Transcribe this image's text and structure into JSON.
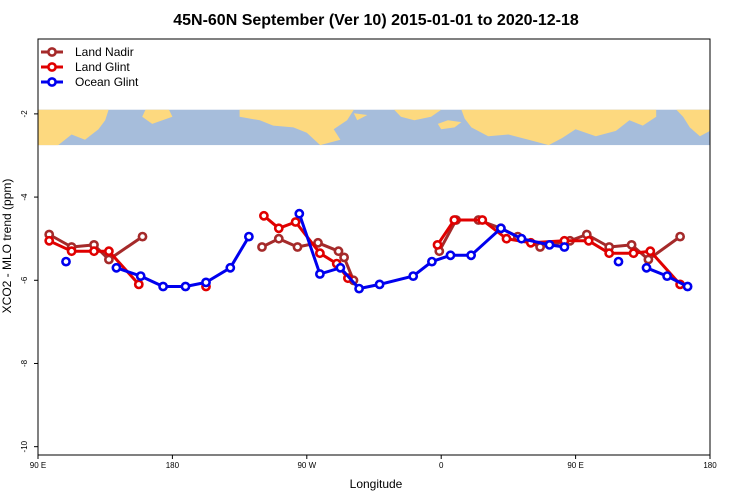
{
  "chart_data": {
    "type": "line",
    "title": "45N-60N September (Ver 10)   2015-01-01 to 2020-12-18",
    "xlabel": "Longitude",
    "ylabel": "XCO2 - MLO trend (ppm)",
    "xlim": [
      90,
      450
    ],
    "ylim": [
      -10.2,
      -0.2
    ],
    "x_ticks": [
      {
        "value": 90,
        "label": "90 E"
      },
      {
        "value": 162,
        "label": "180"
      },
      {
        "value": 234,
        "label": "90 W"
      },
      {
        "value": 306,
        "label": "0"
      },
      {
        "value": 378,
        "label": "90 E"
      },
      {
        "value": 450,
        "label": "180"
      }
    ],
    "y_ticks": [
      {
        "value": -2,
        "label": "-2"
      },
      {
        "value": -4,
        "label": "-4"
      },
      {
        "value": -6,
        "label": "-6"
      },
      {
        "value": -8,
        "label": "-8"
      },
      {
        "value": -10,
        "label": "-10"
      }
    ],
    "map_band": {
      "y_top": -1.9,
      "y_bottom": -2.75,
      "ocean_color": "#a6bddb",
      "land_color": "#fdd97f"
    },
    "legend_position": "top-left",
    "series": [
      {
        "name": "Land Nadir",
        "color": "#a52a2a",
        "segments": [
          [
            [
              96,
              -4.9
            ],
            [
              108,
              -5.2
            ],
            [
              120,
              -5.15
            ],
            [
              128,
              -5.5
            ],
            [
              146,
              -4.95
            ]
          ],
          [
            [
              210,
              -5.2
            ],
            [
              219,
              -5.0
            ],
            [
              229,
              -5.2
            ],
            [
              240,
              -5.1
            ],
            [
              251,
              -5.3
            ],
            [
              254,
              -5.45
            ],
            [
              259,
              -6.0
            ]
          ],
          [
            [
              305,
              -5.3
            ],
            [
              314,
              -4.55
            ],
            [
              326,
              -4.55
            ],
            [
              338,
              -4.75
            ],
            [
              347,
              -4.95
            ],
            [
              359,
              -5.2
            ],
            [
              375,
              -5.05
            ],
            [
              384,
              -4.9
            ],
            [
              396,
              -5.2
            ],
            [
              408,
              -5.15
            ],
            [
              417,
              -5.5
            ],
            [
              434,
              -4.95
            ]
          ]
        ]
      },
      {
        "name": "Land Glint",
        "color": "#e00000",
        "segments": [
          [
            [
              96,
              -5.05
            ],
            [
              108,
              -5.3
            ],
            [
              120,
              -5.3
            ],
            [
              128,
              -5.3
            ],
            [
              144,
              -6.1
            ]
          ],
          [
            [
              180,
              -6.15
            ]
          ],
          [
            [
              211,
              -4.45
            ],
            [
              219,
              -4.75
            ],
            [
              228,
              -4.6
            ],
            [
              241,
              -5.35
            ],
            [
              250,
              -5.6
            ],
            [
              256,
              -5.95
            ]
          ],
          [
            [
              304,
              -5.15
            ],
            [
              313,
              -4.55
            ],
            [
              328,
              -4.55
            ],
            [
              341,
              -5.0
            ],
            [
              354,
              -5.1
            ],
            [
              372,
              -5.05
            ],
            [
              385,
              -5.05
            ],
            [
              396,
              -5.35
            ],
            [
              409,
              -5.35
            ],
            [
              418,
              -5.3
            ],
            [
              434,
              -6.1
            ]
          ]
        ]
      },
      {
        "name": "Ocean Glint",
        "color": "#0000ee",
        "segments": [
          [
            [
              105,
              -5.55
            ]
          ],
          [
            [
              132,
              -5.7
            ],
            [
              145,
              -5.9
            ],
            [
              157,
              -6.15
            ],
            [
              169,
              -6.15
            ],
            [
              180,
              -6.05
            ],
            [
              193,
              -5.7
            ],
            [
              203,
              -4.95
            ]
          ],
          [
            [
              230,
              -4.4
            ],
            [
              241,
              -5.85
            ],
            [
              252,
              -5.7
            ],
            [
              262,
              -6.2
            ],
            [
              273,
              -6.1
            ],
            [
              291,
              -5.9
            ],
            [
              301,
              -5.55
            ],
            [
              311,
              -5.4
            ],
            [
              322,
              -5.4
            ],
            [
              338,
              -4.75
            ],
            [
              349,
              -5.0
            ],
            [
              364,
              -5.15
            ],
            [
              372,
              -5.2
            ]
          ],
          [
            [
              401,
              -5.55
            ]
          ],
          [
            [
              416,
              -5.7
            ],
            [
              427,
              -5.9
            ],
            [
              438,
              -6.15
            ]
          ]
        ]
      }
    ]
  }
}
